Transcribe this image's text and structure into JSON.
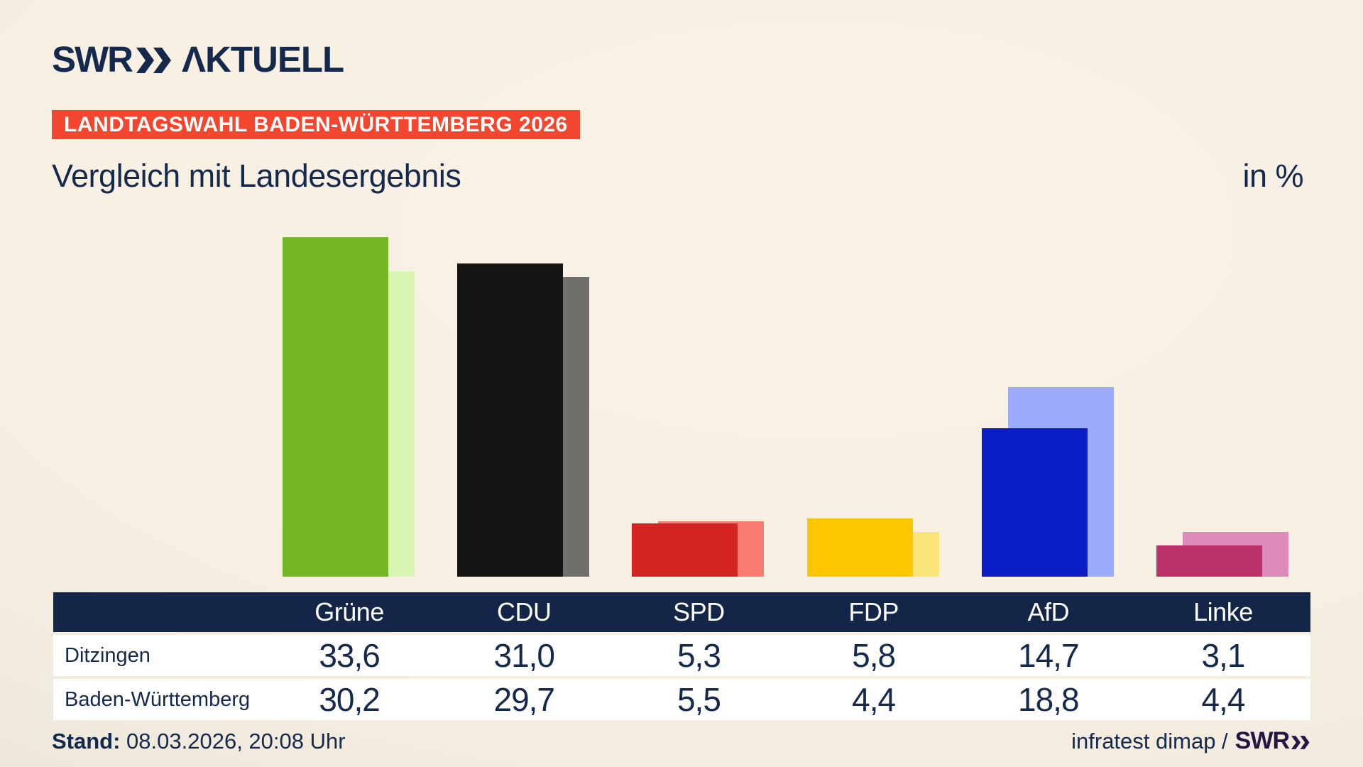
{
  "brand": {
    "logo_text": "SWR",
    "logo_product": "ΛKTUELL"
  },
  "badge": {
    "label": "LANDTAGSWAHL BADEN-WÜRTTEMBERG 2026"
  },
  "heading": {
    "title": "Vergleich mit Landesergebnis",
    "unit": "in %"
  },
  "chart_data": {
    "type": "bar",
    "title": "Vergleich mit Landesergebnis",
    "unit": "%",
    "categories": [
      "Grüne",
      "CDU",
      "SPD",
      "FDP",
      "AfD",
      "Linke"
    ],
    "series": [
      {
        "name": "Ditzingen",
        "values": [
          33.6,
          31.0,
          5.3,
          5.8,
          14.7,
          3.1
        ],
        "style": "main"
      },
      {
        "name": "Baden-Württemberg",
        "values": [
          30.2,
          29.7,
          5.5,
          4.4,
          18.8,
          4.4
        ],
        "style": "light"
      }
    ],
    "party_colors": [
      {
        "party": "Grüne",
        "main": "#74b828",
        "light": "#d9f6b3"
      },
      {
        "party": "CDU",
        "main": "#141414",
        "light": "#716f6c"
      },
      {
        "party": "SPD",
        "main": "#d32421",
        "light": "#f97c71"
      },
      {
        "party": "FDP",
        "main": "#fdc700",
        "light": "#fae578"
      },
      {
        "party": "AfD",
        "main": "#0b1ec6",
        "light": "#9cabfa"
      },
      {
        "party": "Linke",
        "main": "#bc3168",
        "light": "#dd8bb9"
      }
    ],
    "ylim": [
      0,
      35
    ],
    "grid": false,
    "legend": "table-below",
    "value_format": "decimal-comma"
  },
  "footer": {
    "stand_label": "Stand:",
    "stand_value": " 08.03.2026, 20:08 Uhr",
    "source_text": "infratest dimap /",
    "source_brand": "SWR"
  },
  "colors": {
    "background_cream": "#f8f0e3",
    "background_gray": "#c6c3bd",
    "navy": "#15294d",
    "badge_red": "#f2462f",
    "table_header_bg": "#132647",
    "row_bg": "#ffffff",
    "swr_footer_purple": "#241745"
  }
}
